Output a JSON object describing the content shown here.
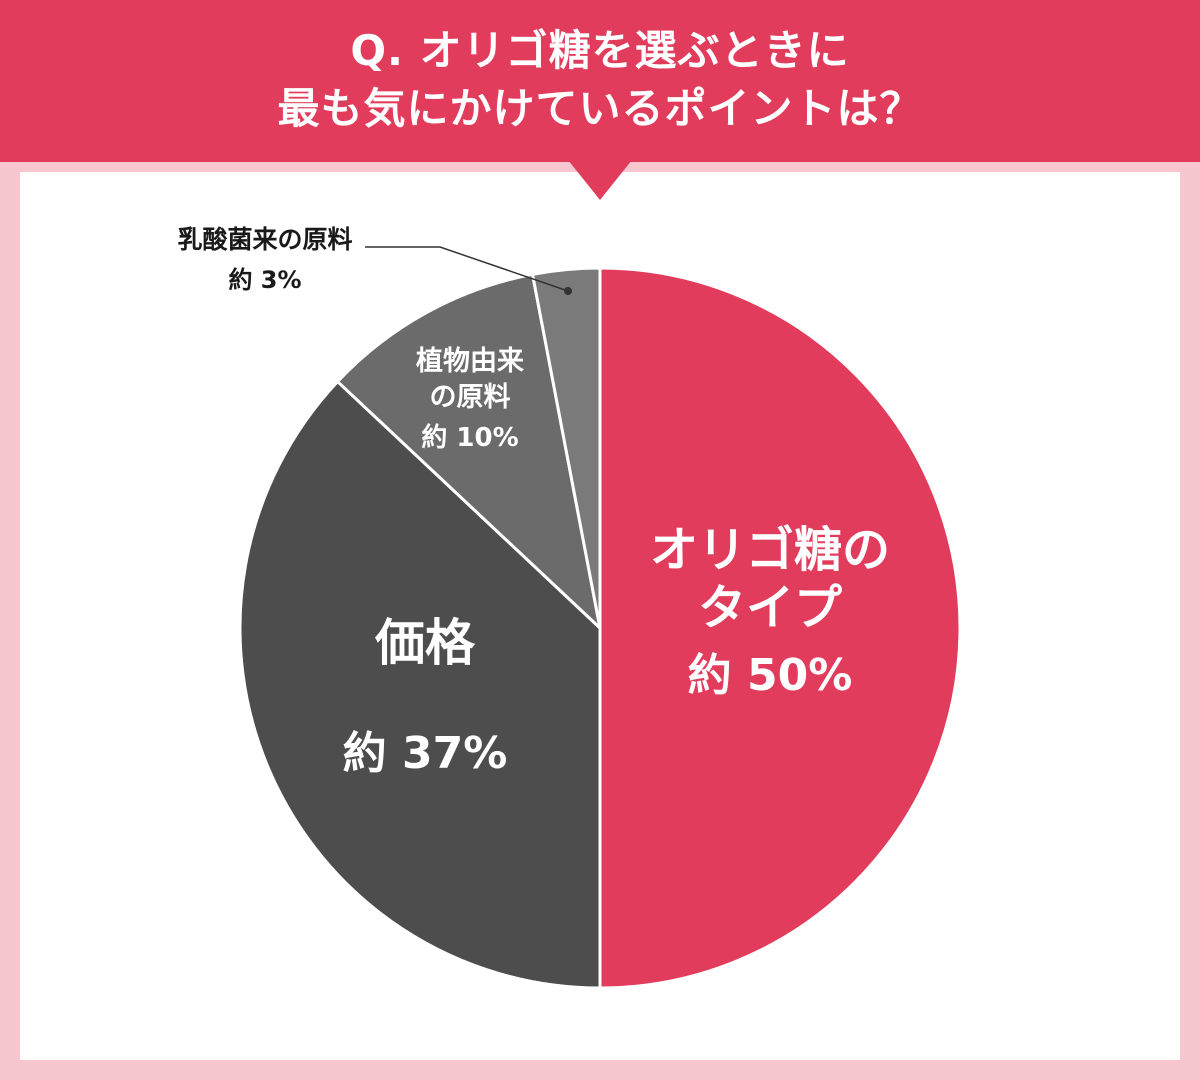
{
  "title": {
    "line1": "Q. オリゴ糖を選ぶときに",
    "line2": "最も気にかけているポイントは？"
  },
  "colors": {
    "banner": "#e23c5c",
    "background": "#f7c6cf",
    "card": "#ffffff"
  },
  "chart_data": {
    "type": "pie",
    "title": "Q. オリゴ糖を選ぶときに最も気にかけているポイントは？",
    "slices": [
      {
        "label_lines": [
          "オリゴ糖の",
          "タイプ"
        ],
        "value_text": "約 50%",
        "value": 50,
        "color": "#e23c5c",
        "text_color": "#ffffff"
      },
      {
        "label_lines": [
          "価格"
        ],
        "value_text": "約 37%",
        "value": 37,
        "color": "#4d4d4d",
        "text_color": "#ffffff"
      },
      {
        "label_lines": [
          "植物由来",
          "の原料"
        ],
        "value_text": "約 10%",
        "value": 10,
        "color": "#6b6b6b",
        "text_color": "#ffffff"
      },
      {
        "label_lines": [
          "乳酸菌来の原料"
        ],
        "value_text": "約 3%",
        "value": 3,
        "color": "#7a7a7a",
        "text_color": "#1a1a1a"
      }
    ]
  }
}
